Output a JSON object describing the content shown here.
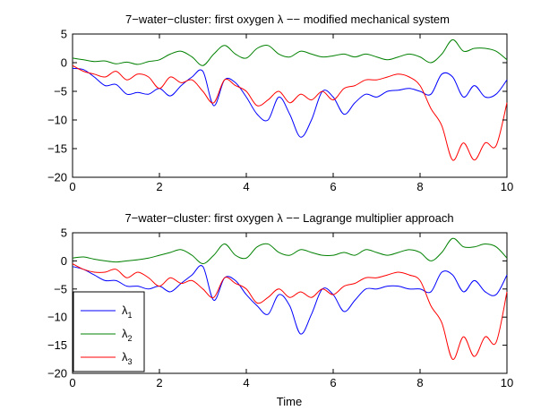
{
  "chart_data": [
    {
      "type": "line",
      "title": "7−water−cluster: first oxygen λ −− modified mechanical system",
      "xlabel": "",
      "ylabel": "",
      "xlim": [
        0,
        10
      ],
      "ylim": [
        -20,
        5
      ],
      "xticks": [
        "0",
        "2",
        "4",
        "6",
        "8",
        "10"
      ],
      "yticks": [
        "5",
        "0",
        "−5",
        "−10",
        "−15",
        "−20"
      ],
      "grid": false,
      "legend": null,
      "series": [
        {
          "color": "#0000ff",
          "x": [
            0,
            0.25,
            0.5,
            0.75,
            1.0,
            1.25,
            1.5,
            1.75,
            2.0,
            2.25,
            2.5,
            2.75,
            3.0,
            3.25,
            3.5,
            3.75,
            4.0,
            4.25,
            4.5,
            4.75,
            5.0,
            5.25,
            5.5,
            5.75,
            6.0,
            6.25,
            6.5,
            6.75,
            7.0,
            7.25,
            7.5,
            7.75,
            8.0,
            8.25,
            8.5,
            8.75,
            9.0,
            9.25,
            9.5,
            9.75,
            10.0
          ],
          "y": [
            -1,
            -1.2,
            -2.5,
            -4,
            -3.8,
            -5.5,
            -5.2,
            -5.5,
            -4.5,
            -5.8,
            -4,
            -2.5,
            -1.5,
            -7.5,
            -3,
            -3.5,
            -6,
            -9,
            -10,
            -6,
            -9,
            -13,
            -10,
            -5,
            -6,
            -9,
            -7,
            -5.5,
            -6,
            -5,
            -4.8,
            -4.5,
            -5,
            -5.5,
            -2,
            -2.5,
            -6,
            -4,
            -6,
            -5.5,
            -3
          ]
        },
        {
          "color": "#008000",
          "x": [
            0,
            0.25,
            0.5,
            0.75,
            1.0,
            1.25,
            1.5,
            1.75,
            2.0,
            2.25,
            2.5,
            2.75,
            3.0,
            3.25,
            3.5,
            3.75,
            4.0,
            4.25,
            4.5,
            4.75,
            5.0,
            5.25,
            5.5,
            5.75,
            6.0,
            6.25,
            6.5,
            6.75,
            7.0,
            7.25,
            7.5,
            7.75,
            8.0,
            8.25,
            8.5,
            8.75,
            9.0,
            9.25,
            9.5,
            9.75,
            10.0
          ],
          "y": [
            0.8,
            0.5,
            0.2,
            0.3,
            -0.2,
            0.1,
            -0.3,
            0.2,
            0.5,
            1.5,
            2.0,
            1.0,
            -0.5,
            1.5,
            3.0,
            1.5,
            0.8,
            2.5,
            3.0,
            1.5,
            1.0,
            2.0,
            1.5,
            1.0,
            1.2,
            1.5,
            1.0,
            1.5,
            1.0,
            0.5,
            1.0,
            1.5,
            1.0,
            0,
            1.5,
            4.0,
            2.0,
            2.5,
            2.5,
            2.0,
            0.5
          ]
        },
        {
          "color": "#ff0000",
          "x": [
            0,
            0.25,
            0.5,
            0.75,
            1.0,
            1.25,
            1.5,
            1.75,
            2.0,
            2.25,
            2.5,
            2.75,
            3.0,
            3.25,
            3.5,
            3.75,
            4.0,
            4.25,
            4.5,
            4.75,
            5.0,
            5.25,
            5.5,
            5.75,
            6.0,
            6.25,
            6.5,
            6.75,
            7.0,
            7.25,
            7.5,
            7.75,
            8.0,
            8.25,
            8.5,
            8.75,
            9.0,
            9.25,
            9.5,
            9.75,
            10.0
          ],
          "y": [
            -0.5,
            -1.5,
            -2.0,
            -2.5,
            -1.5,
            -3.0,
            -2.0,
            -2.5,
            -4.5,
            -2.5,
            -3.5,
            -3.0,
            -5.0,
            -7.0,
            -3.0,
            -4.0,
            -5.0,
            -7.5,
            -6.5,
            -5.0,
            -7.0,
            -5.5,
            -6.5,
            -5.0,
            -6.5,
            -4.5,
            -4.0,
            -3.0,
            -3.0,
            -2.5,
            -2.0,
            -2.5,
            -4.0,
            -8.0,
            -11.0,
            -17.0,
            -14.0,
            -17.0,
            -14.0,
            -14.5,
            -7.0
          ]
        }
      ]
    },
    {
      "type": "line",
      "title": "7−water−cluster: first oxygen λ −− Lagrange multiplier approach",
      "xlabel": "Time",
      "ylabel": "",
      "xlim": [
        0,
        10
      ],
      "ylim": [
        -20,
        5
      ],
      "xticks": [
        "0",
        "2",
        "4",
        "6",
        "8",
        "10"
      ],
      "yticks": [
        "5",
        "0",
        "−5",
        "−10",
        "−15",
        "−20"
      ],
      "grid": false,
      "legend": "lower-left",
      "series": [
        {
          "name": "λ",
          "name_sub": "1",
          "color": "#0000ff",
          "x": [
            0,
            0.25,
            0.5,
            0.75,
            1.0,
            1.25,
            1.5,
            1.75,
            2.0,
            2.25,
            2.5,
            2.75,
            3.0,
            3.25,
            3.5,
            3.75,
            4.0,
            4.25,
            4.5,
            4.75,
            5.0,
            5.25,
            5.5,
            5.75,
            6.0,
            6.25,
            6.5,
            6.75,
            7.0,
            7.25,
            7.5,
            7.75,
            8.0,
            8.25,
            8.5,
            8.75,
            9.0,
            9.25,
            9.5,
            9.75,
            10.0
          ],
          "y": [
            -1,
            -1.5,
            -2.5,
            -3.5,
            -3.5,
            -4.5,
            -4.5,
            -5.0,
            -4.5,
            -5.5,
            -4.0,
            -2.5,
            -1.0,
            -7.0,
            -3.0,
            -3.5,
            -6.0,
            -8.0,
            -9.5,
            -6.0,
            -8.0,
            -13.0,
            -9.5,
            -5.0,
            -6.0,
            -9.0,
            -7.0,
            -5.0,
            -5.0,
            -4.5,
            -4.5,
            -5.0,
            -5.0,
            -5.5,
            -2.0,
            -2.5,
            -5.5,
            -3.5,
            -5.5,
            -6.0,
            -2.5
          ]
        },
        {
          "name": "λ",
          "name_sub": "2",
          "color": "#008000",
          "x": [
            0,
            0.25,
            0.5,
            0.75,
            1.0,
            1.25,
            1.5,
            1.75,
            2.0,
            2.25,
            2.5,
            2.75,
            3.0,
            3.25,
            3.5,
            3.75,
            4.0,
            4.25,
            4.5,
            4.75,
            5.0,
            5.25,
            5.5,
            5.75,
            6.0,
            6.25,
            6.5,
            6.75,
            7.0,
            7.25,
            7.5,
            7.75,
            8.0,
            8.25,
            8.5,
            8.75,
            9.0,
            9.25,
            9.5,
            9.75,
            10.0
          ],
          "y": [
            0.5,
            0.7,
            0.3,
            0,
            -0.2,
            0,
            0.2,
            0.5,
            1.0,
            1.5,
            2.0,
            1.0,
            -0.5,
            1.0,
            3.0,
            1.0,
            0.5,
            2.5,
            3.0,
            1.5,
            1.0,
            2.0,
            1.5,
            1.0,
            1.0,
            1.5,
            1.0,
            2.0,
            1.5,
            1.0,
            1.5,
            2.0,
            1.5,
            0,
            1.5,
            4.0,
            2.5,
            2.5,
            3.0,
            2.5,
            0.5
          ]
        },
        {
          "name": "λ",
          "name_sub": "3",
          "color": "#ff0000",
          "x": [
            0,
            0.25,
            0.5,
            0.75,
            1.0,
            1.25,
            1.5,
            1.75,
            2.0,
            2.25,
            2.5,
            2.75,
            3.0,
            3.25,
            3.5,
            3.75,
            4.0,
            4.25,
            4.5,
            4.75,
            5.0,
            5.25,
            5.5,
            5.75,
            6.0,
            6.25,
            6.5,
            6.75,
            7.0,
            7.25,
            7.5,
            7.75,
            8.0,
            8.25,
            8.5,
            8.75,
            9.0,
            9.25,
            9.5,
            9.75,
            10.0
          ],
          "y": [
            -0.5,
            -1.5,
            -2.0,
            -2.0,
            -1.5,
            -3.0,
            -2.0,
            -3.0,
            -4.5,
            -3.0,
            -4.0,
            -3.5,
            -5.0,
            -6.5,
            -3.0,
            -4.0,
            -5.0,
            -7.5,
            -6.5,
            -5.0,
            -6.5,
            -5.5,
            -6.5,
            -5.0,
            -6.0,
            -4.5,
            -4.0,
            -3.0,
            -3.0,
            -2.5,
            -2.0,
            -2.5,
            -3.5,
            -8.0,
            -11.0,
            -17.5,
            -13.5,
            -17.0,
            -13.5,
            -14.5,
            -5.5
          ]
        }
      ]
    }
  ]
}
